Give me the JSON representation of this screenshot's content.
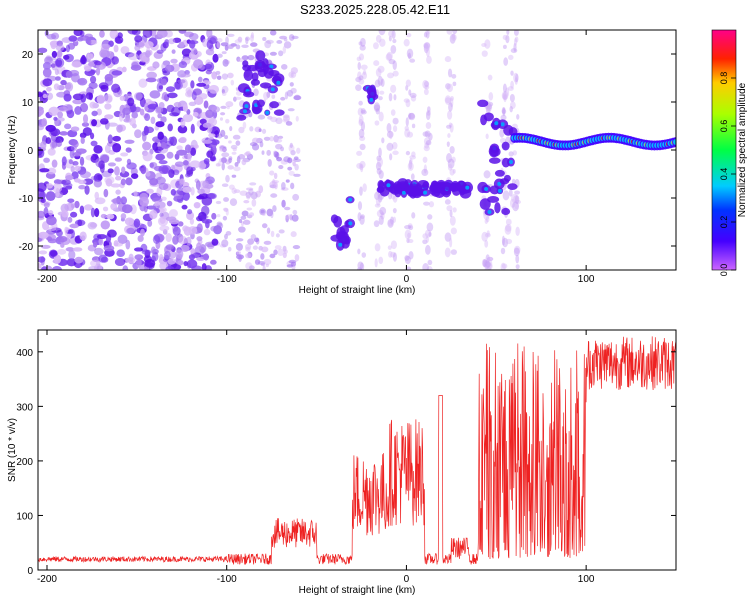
{
  "title": "S233.2025.228.05.42.E11",
  "chart_data": [
    {
      "type": "heatmap",
      "xlabel": "Height of straight line (km)",
      "ylabel": "Frequency (Hz)",
      "xlim": [
        -205,
        150
      ],
      "ylim": [
        -25,
        25
      ],
      "xticks": [
        -200,
        -100,
        0,
        100
      ],
      "yticks": [
        -20,
        -10,
        0,
        10,
        20
      ],
      "colorbar": {
        "label": "Normalized spectral amplitude",
        "range": [
          0,
          1
        ],
        "ticks": [
          0.0,
          0.2,
          0.4,
          0.6,
          0.8
        ],
        "colormap": "rainbow"
      },
      "features": [
        {
          "x": [
            -205,
            -105
          ],
          "description": "scattered noise",
          "freq_range": [
            -25,
            25
          ]
        },
        {
          "x": [
            -92,
            -70
          ],
          "freq": [
            5,
            20
          ]
        },
        {
          "x": [
            -40,
            -30
          ],
          "freq": [
            -20,
            -10
          ]
        },
        {
          "x": [
            -22,
            -18
          ],
          "freq": [
            10,
            13
          ]
        },
        {
          "x": [
            -15,
            35
          ],
          "freq": [
            -9,
            -7
          ]
        },
        {
          "x": [
            40,
            60
          ],
          "freq": [
            -13,
            10
          ]
        },
        {
          "x": [
            60,
            150
          ],
          "freq": [
            0.5,
            3
          ],
          "description": "strong steady tone"
        }
      ]
    },
    {
      "type": "line",
      "xlabel": "Height of straight line (km)",
      "ylabel": "SNR (10 * v/v)",
      "xlim": [
        -205,
        150
      ],
      "ylim": [
        0,
        440
      ],
      "xticks": [
        -200,
        -100,
        0,
        100
      ],
      "yticks": [
        0,
        100,
        200,
        300,
        400
      ],
      "color": "#ee2222",
      "segments": [
        {
          "x": [
            -205,
            -100
          ],
          "y_approx": [
            15,
            25
          ]
        },
        {
          "x": [
            -75,
            -50
          ],
          "y_approx": [
            40,
            95
          ]
        },
        {
          "x": [
            -30,
            -10
          ],
          "y_approx": [
            60,
            220
          ]
        },
        {
          "x": [
            -10,
            10
          ],
          "y_approx": [
            80,
            280
          ]
        },
        {
          "x": [
            18,
            20
          ],
          "y_approx": [
            320,
            320
          ]
        },
        {
          "x": [
            25,
            35
          ],
          "y_approx": [
            20,
            60
          ]
        },
        {
          "x": [
            40,
            100
          ],
          "y_approx": [
            20,
            420
          ]
        },
        {
          "x": [
            100,
            150
          ],
          "y_approx": [
            330,
            430
          ]
        }
      ]
    }
  ]
}
